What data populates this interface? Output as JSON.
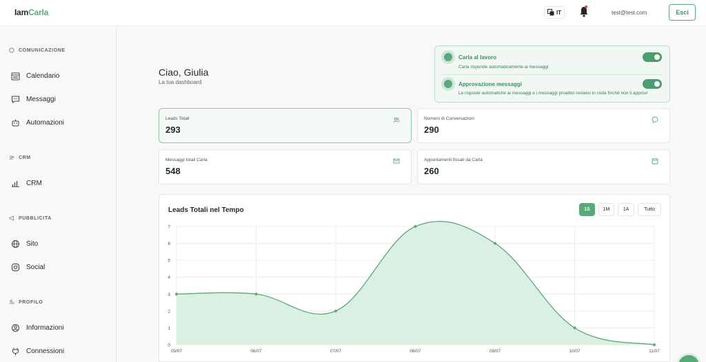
{
  "header": {
    "logo_part1": "Iam",
    "logo_part2": "Carla",
    "language": "IT",
    "user_email": "test@test.com",
    "logout_label": "Esci"
  },
  "sidebar": {
    "sections": [
      {
        "title": "COMUNICAZIONE",
        "icon": "chat-bubble-icon",
        "items": [
          {
            "label": "Calendario",
            "icon": "calendar-icon"
          },
          {
            "label": "Messaggi",
            "icon": "message-icon"
          },
          {
            "label": "Automazioni",
            "icon": "robot-icon"
          }
        ]
      },
      {
        "title": "CRM",
        "icon": "users-icon",
        "items": [
          {
            "label": "CRM",
            "icon": "bar-chart-icon"
          }
        ]
      },
      {
        "title": "PUBBLICITA",
        "icon": "megaphone-icon",
        "items": [
          {
            "label": "Sito",
            "icon": "globe-icon"
          },
          {
            "label": "Social",
            "icon": "instagram-icon"
          }
        ]
      },
      {
        "title": "PROFILO",
        "icon": "user-cog-icon",
        "items": [
          {
            "label": "Informazioni",
            "icon": "user-circle-icon"
          },
          {
            "label": "Connessioni",
            "icon": "plug-icon"
          }
        ]
      }
    ]
  },
  "main": {
    "greeting": "Ciao, Giulia",
    "subtitle": "La tua dashboard",
    "status": [
      {
        "title": "Carla al lavoro",
        "description": "Carla risponde automaticamente ai messaggi",
        "enabled": true
      },
      {
        "title": "Approvazione messaggi",
        "description": "Le risposte automatiche ai messaggi e i messaggi proattivi restano in coda finché non li approvi",
        "enabled": true
      }
    ],
    "stats": [
      {
        "label": "Leads Totali",
        "value": "293",
        "icon": "users-icon"
      },
      {
        "label": "Numero di Conversazioni",
        "value": "290",
        "icon": "chat-bubble-icon"
      },
      {
        "label": "Messaggi totali Carla",
        "value": "548",
        "icon": "mail-icon"
      },
      {
        "label": "Appuntamenti fissati da Carla",
        "value": "260",
        "icon": "calendar-icon"
      }
    ],
    "chart_card": {
      "title": "Leads Totali nel Tempo",
      "ranges": [
        "1S",
        "1M",
        "1A",
        "Tutto"
      ],
      "selected_range": "1S"
    }
  },
  "colors": {
    "accent": "#5aa97b",
    "accent_dark": "#3f8f62",
    "area_fill": "#d5ecdd"
  },
  "chart_data": {
    "type": "area",
    "title": "Leads Totali nel Tempo",
    "x": [
      "05/07",
      "06/07",
      "07/07",
      "08/07",
      "09/07",
      "10/07",
      "11/07"
    ],
    "series": [
      {
        "values": [
          3,
          3,
          2,
          7,
          6,
          1,
          0
        ]
      }
    ],
    "ylim": [
      0,
      7
    ],
    "yticks": [
      "0",
      "1",
      "2",
      "3",
      "4",
      "5",
      "6",
      "7"
    ],
    "grid": true,
    "curve": "smooth"
  }
}
